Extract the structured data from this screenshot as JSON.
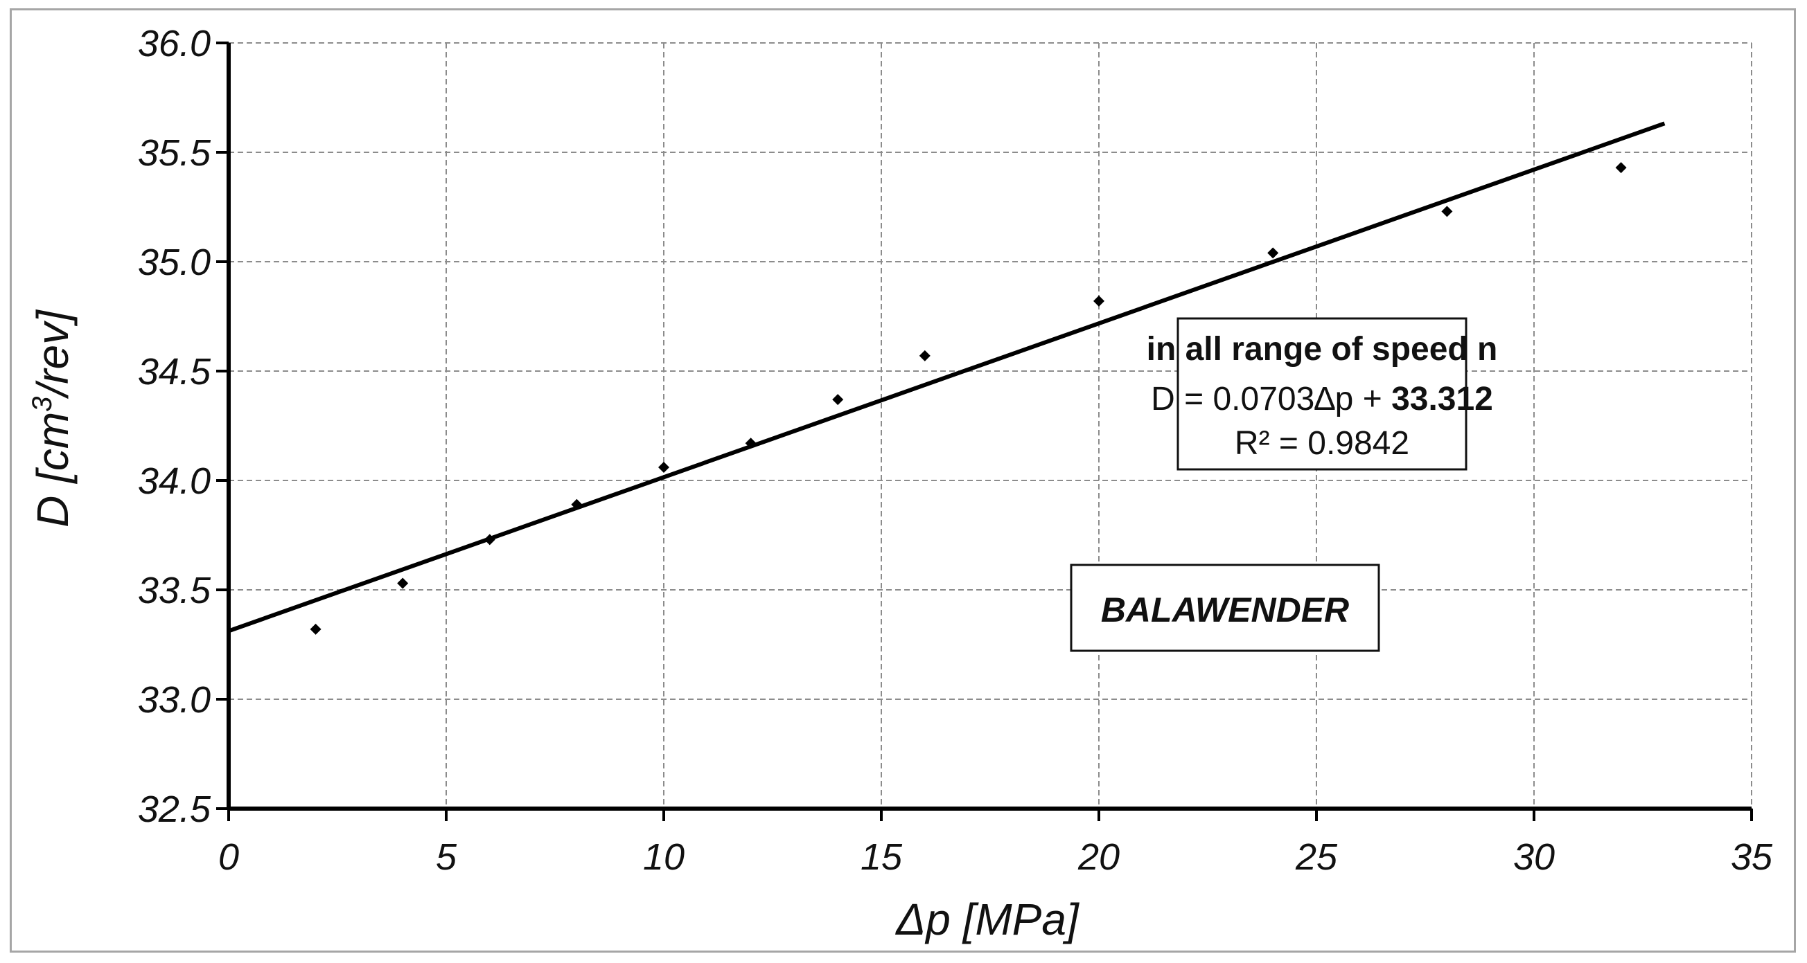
{
  "chart_data": {
    "type": "scatter",
    "xlabel_symbol": "Δp",
    "xlabel_unit": "[MPa]",
    "ylabel_symbol": "D",
    "ylabel_unit_pre": "[cm",
    "ylabel_unit_sup": "3",
    "ylabel_unit_post": "/rev]",
    "xlim": [
      0,
      35
    ],
    "ylim": [
      32.5,
      36.0
    ],
    "x_ticks": [
      "0",
      "5",
      "10",
      "15",
      "20",
      "25",
      "30",
      "35"
    ],
    "y_ticks": [
      "32.5",
      "33.0",
      "33.5",
      "34.0",
      "34.5",
      "35.0",
      "35.5",
      "36.0"
    ],
    "grid": true,
    "series": [
      {
        "points": [
          {
            "x": 2,
            "y": 33.32
          },
          {
            "x": 4,
            "y": 33.53
          },
          {
            "x": 6,
            "y": 33.73
          },
          {
            "x": 8,
            "y": 33.89
          },
          {
            "x": 10,
            "y": 34.06
          },
          {
            "x": 12,
            "y": 34.17
          },
          {
            "x": 14,
            "y": 34.37
          },
          {
            "x": 16,
            "y": 34.57
          },
          {
            "x": 20,
            "y": 34.82
          },
          {
            "x": 24,
            "y": 35.04
          },
          {
            "x": 28,
            "y": 35.23
          },
          {
            "x": 32,
            "y": 35.43
          }
        ]
      }
    ],
    "trendline": {
      "slope": 0.0703,
      "intercept": 33.312,
      "x_range": [
        0,
        33
      ]
    },
    "annotation": {
      "title": "in all range of speed n",
      "equation_prefix": "D = 0.0703∆p + ",
      "equation_intercept": "33.312",
      "r_squared": "R² = 0.9842"
    },
    "label_box": "BALAWENDER"
  }
}
